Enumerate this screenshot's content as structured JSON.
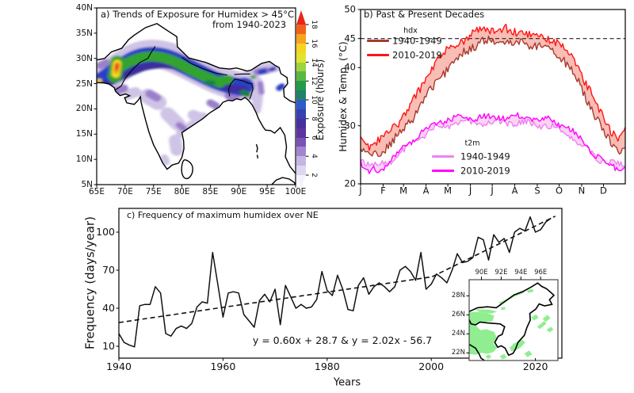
{
  "chart_data": [
    {
      "id": "a",
      "type": "heatmap",
      "title": "a) Trends of Exposure for Humidex > 45°C",
      "subtitle": "from 1940-2023",
      "x_tick_labels": [
        "65E",
        "70E",
        "75E",
        "80E",
        "85E",
        "90E",
        "95E",
        "100E"
      ],
      "x_tick_lons": [
        65,
        70,
        75,
        80,
        85,
        90,
        95,
        100
      ],
      "y_tick_labels": [
        "5N",
        "10N",
        "15N",
        "20N",
        "25N",
        "30N",
        "35N",
        "40N"
      ],
      "y_tick_lats": [
        5,
        10,
        15,
        20,
        25,
        30,
        35,
        40
      ],
      "lon_range": [
        65,
        100
      ],
      "lat_range": [
        5,
        40
      ],
      "colorbar": {
        "label": "Exposure (hours)",
        "tick_values": [
          2,
          4,
          6,
          8,
          10,
          12,
          14,
          16,
          18
        ],
        "segment_colors_bottom_to_top": [
          "#ded6ee",
          "#c6b4e2",
          "#a285cf",
          "#7a54b4",
          "#5d35a2",
          "#47309c",
          "#3640b2",
          "#2f5ac8",
          "#20826a",
          "#259a48",
          "#57b944",
          "#9ed43c",
          "#dfe52e",
          "#f7d420",
          "#f7a41d",
          "#f2611b"
        ],
        "under_arrow_color": "#f5f2fb",
        "over_arrow_color": "#e8251d"
      }
    },
    {
      "id": "b",
      "type": "line",
      "title": "b) Past & Present Decades",
      "ylabel": "Humidex & Temp. (°C)",
      "y_axis": {
        "min": 20,
        "max": 50,
        "tick_values": [
          20,
          30,
          40,
          45,
          50
        ]
      },
      "x_tick_labels": [
        "J",
        "F",
        "M",
        "A",
        "M",
        "J",
        "J",
        "A",
        "S",
        "O",
        "N",
        "D"
      ],
      "month_start_days": [
        1,
        32,
        60,
        91,
        121,
        152,
        182,
        213,
        244,
        274,
        305,
        335
      ],
      "threshold_value": 45,
      "legends": {
        "hdx": {
          "title": "hdx",
          "entries": [
            {
              "label": "1940-1949"
            },
            {
              "label": "2010-2019"
            }
          ]
        },
        "t2m": {
          "title": "t2m",
          "entries": [
            {
              "label": "1940-1949"
            },
            {
              "label": "2010-2019"
            }
          ]
        }
      },
      "series": [
        {
          "name": "hdx 1940-1949",
          "color": "#a63a30",
          "noise_amp": 1.5,
          "anchors": [
            [
              1,
              25.6
            ],
            [
              8,
              25.2
            ],
            [
              16,
              25
            ],
            [
              24,
              25.3
            ],
            [
              32,
              25.8
            ],
            [
              42,
              26.8
            ],
            [
              52,
              28
            ],
            [
              62,
              29.6
            ],
            [
              72,
              31.4
            ],
            [
              82,
              33.2
            ],
            [
              92,
              35.2
            ],
            [
              102,
              37
            ],
            [
              112,
              38.6
            ],
            [
              122,
              40
            ],
            [
              132,
              41.4
            ],
            [
              142,
              42.6
            ],
            [
              152,
              43.4
            ],
            [
              162,
              44
            ],
            [
              172,
              44.4
            ],
            [
              182,
              44.6
            ],
            [
              192,
              44.1
            ],
            [
              202,
              44.5
            ],
            [
              212,
              44.2
            ],
            [
              222,
              44.4
            ],
            [
              232,
              43.9
            ],
            [
              242,
              43.8
            ],
            [
              252,
              43.9
            ],
            [
              262,
              43.2
            ],
            [
              272,
              42.4
            ],
            [
              280,
              41.4
            ],
            [
              288,
              40
            ],
            [
              296,
              38.4
            ],
            [
              304,
              36.6
            ],
            [
              312,
              34.6
            ],
            [
              320,
              32.6
            ],
            [
              328,
              30.6
            ],
            [
              336,
              28.8
            ],
            [
              344,
              27.2
            ],
            [
              352,
              26.2
            ],
            [
              358,
              25.8
            ],
            [
              365,
              26.4
            ]
          ]
        },
        {
          "name": "hdx 2010-2019",
          "color": "#ff1414",
          "noise_amp": 1.5,
          "anchors": [
            [
              1,
              28.5
            ],
            [
              5,
              27.2
            ],
            [
              12,
              26.3
            ],
            [
              18,
              27.2
            ],
            [
              25,
              27.6
            ],
            [
              32,
              28
            ],
            [
              40,
              28.6
            ],
            [
              50,
              30
            ],
            [
              60,
              31.8
            ],
            [
              70,
              33.5
            ],
            [
              80,
              35.5
            ],
            [
              90,
              37.8
            ],
            [
              100,
              40
            ],
            [
              110,
              41.8
            ],
            [
              120,
              43
            ],
            [
              130,
              44
            ],
            [
              140,
              44.8
            ],
            [
              150,
              45.3
            ],
            [
              160,
              46
            ],
            [
              170,
              46.4
            ],
            [
              180,
              46.6
            ],
            [
              190,
              46
            ],
            [
              200,
              46.5
            ],
            [
              210,
              46
            ],
            [
              220,
              46.3
            ],
            [
              230,
              45.6
            ],
            [
              240,
              45.4
            ],
            [
              250,
              45.6
            ],
            [
              260,
              45
            ],
            [
              270,
              44.3
            ],
            [
              278,
              43.5
            ],
            [
              286,
              42.5
            ],
            [
              294,
              41.3
            ],
            [
              302,
              39.5
            ],
            [
              310,
              37.5
            ],
            [
              318,
              35.5
            ],
            [
              326,
              33.5
            ],
            [
              334,
              31.5
            ],
            [
              342,
              29.8
            ],
            [
              350,
              28.6
            ],
            [
              356,
              27.9
            ],
            [
              361,
              28.4
            ],
            [
              365,
              29.2
            ]
          ]
        },
        {
          "name": "t2m 1940-1949",
          "color": "#ee82ee",
          "noise_amp": 1.0,
          "anchors": [
            [
              1,
              24.2
            ],
            [
              8,
              23.8
            ],
            [
              16,
              23.5
            ],
            [
              24,
              23.3
            ],
            [
              32,
              23.5
            ],
            [
              42,
              24
            ],
            [
              52,
              24.8
            ],
            [
              62,
              25.8
            ],
            [
              72,
              26.9
            ],
            [
              82,
              27.9
            ],
            [
              92,
              28.8
            ],
            [
              102,
              29.4
            ],
            [
              112,
              29.9
            ],
            [
              124,
              30.2
            ],
            [
              136,
              30.4
            ],
            [
              148,
              30.5
            ],
            [
              160,
              30.6
            ],
            [
              172,
              30.4
            ],
            [
              184,
              30.7
            ],
            [
              196,
              30.5
            ],
            [
              208,
              30.6
            ],
            [
              220,
              30.4
            ],
            [
              232,
              30.3
            ],
            [
              244,
              30.2
            ],
            [
              256,
              30
            ],
            [
              268,
              29.7
            ],
            [
              278,
              29.2
            ],
            [
              288,
              28.5
            ],
            [
              298,
              27.5
            ],
            [
              308,
              26.3
            ],
            [
              318,
              25.2
            ],
            [
              328,
              24.4
            ],
            [
              338,
              23.8
            ],
            [
              348,
              23.5
            ],
            [
              356,
              23.3
            ],
            [
              361,
              23.2
            ],
            [
              365,
              23.5
            ]
          ]
        },
        {
          "name": "t2m 2010-2019",
          "color": "#ff00ff",
          "noise_amp": 1.0,
          "anchors": [
            [
              1,
              23.8
            ],
            [
              6,
              22.6
            ],
            [
              12,
              21.8
            ],
            [
              18,
              22.6
            ],
            [
              24,
              22
            ],
            [
              30,
              22.8
            ],
            [
              38,
              23.6
            ],
            [
              48,
              24.6
            ],
            [
              58,
              25.8
            ],
            [
              68,
              27
            ],
            [
              78,
              28.2
            ],
            [
              88,
              29.2
            ],
            [
              98,
              30
            ],
            [
              108,
              30.6
            ],
            [
              118,
              31
            ],
            [
              130,
              31.2
            ],
            [
              142,
              31.4
            ],
            [
              154,
              31.2
            ],
            [
              166,
              31.5
            ],
            [
              178,
              31.3
            ],
            [
              190,
              31.6
            ],
            [
              202,
              31.4
            ],
            [
              214,
              31.6
            ],
            [
              226,
              31.3
            ],
            [
              238,
              31.4
            ],
            [
              250,
              31.1
            ],
            [
              262,
              30.9
            ],
            [
              272,
              30.5
            ],
            [
              282,
              29.9
            ],
            [
              292,
              29
            ],
            [
              302,
              27.8
            ],
            [
              312,
              26.4
            ],
            [
              322,
              25.2
            ],
            [
              332,
              24.2
            ],
            [
              342,
              23.4
            ],
            [
              350,
              22.9
            ],
            [
              356,
              22.6
            ],
            [
              361,
              22.9
            ],
            [
              365,
              23.4
            ]
          ]
        }
      ],
      "fills": [
        {
          "between": [
            0,
            1
          ],
          "color": "#f59a8c",
          "opacity": 0.65
        },
        {
          "between": [
            2,
            3
          ],
          "color": "#f9c0f2",
          "opacity": 0.7
        }
      ]
    },
    {
      "id": "c",
      "type": "line",
      "title": "c) Frequency of maximum humidex over NE",
      "ylabel": "Frequency (days/year)",
      "xlabel": "Years",
      "y_tick_values": [
        10,
        40,
        70,
        100
      ],
      "x_tick_values": [
        1940,
        1960,
        1980,
        2000,
        2020
      ],
      "equation_text": "y = 0.60x + 28.7 & y = 2.02x - 56.7",
      "trend_lines": [
        {
          "equation": "y = 0.60x + 28.7",
          "slope": 0.6,
          "intercept": 28.7,
          "x_from": 1940,
          "x_to": 2000
        },
        {
          "equation": "y = 2.02x - 56.7",
          "slope": 2.02,
          "intercept": -56.7,
          "x_from": 2000,
          "x_to": 2023.8
        }
      ],
      "line_color": "#111111",
      "start_year": 1940,
      "values": [
        20,
        13,
        11,
        9.5,
        42,
        43,
        43,
        57,
        52,
        20,
        18,
        24,
        26,
        24,
        28,
        41,
        45,
        44,
        84,
        59,
        33,
        52,
        53,
        52,
        35,
        30,
        25,
        46,
        51,
        45,
        55,
        27,
        58,
        49,
        40,
        43,
        40,
        41,
        47,
        69,
        54,
        50,
        66,
        55,
        39,
        38,
        58,
        64,
        51,
        57,
        60,
        57,
        53,
        57,
        70,
        73,
        69,
        62,
        84,
        55,
        59,
        67,
        64,
        60,
        70,
        83,
        76,
        77,
        80,
        96,
        94,
        78,
        98,
        92,
        95,
        84,
        100,
        103,
        101,
        112,
        100,
        102,
        108,
        111
      ],
      "inset": {
        "x_tick_labels": [
          "90E",
          "92E",
          "94E",
          "96E"
        ],
        "x_tick_lons": [
          90,
          92,
          94,
          96
        ],
        "y_tick_labels": [
          "28N",
          "26N",
          "24N",
          "22N"
        ],
        "y_tick_lats": [
          28,
          26,
          24,
          22
        ],
        "shade_color": "#90ee90"
      }
    }
  ]
}
